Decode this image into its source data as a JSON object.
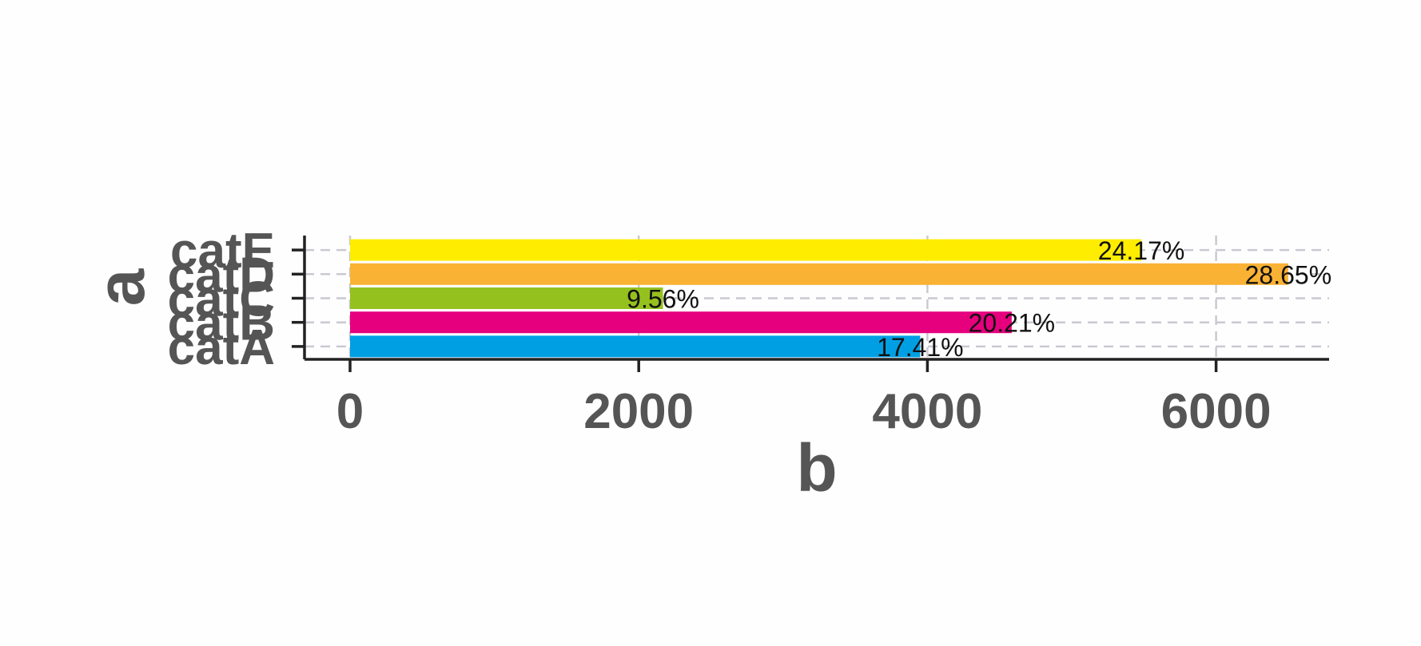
{
  "chart_data": {
    "type": "bar",
    "orientation": "horizontal",
    "categories": [
      "catA",
      "catB",
      "catC",
      "catD",
      "catE"
    ],
    "values": [
      3950,
      4584,
      2168,
      6500,
      5482
    ],
    "labels": [
      "17.41%",
      "20.21%",
      "9.56%",
      "28.65%",
      "24.17%"
    ],
    "colors": [
      "#009fe3",
      "#e6007e",
      "#95c11f",
      "#f9b234",
      "#ffed00"
    ],
    "xlabel": "b",
    "ylabel": "a",
    "xlim": [
      -320,
      6800
    ],
    "xticks": [
      0,
      2000,
      4000,
      6000
    ],
    "grid": true
  }
}
